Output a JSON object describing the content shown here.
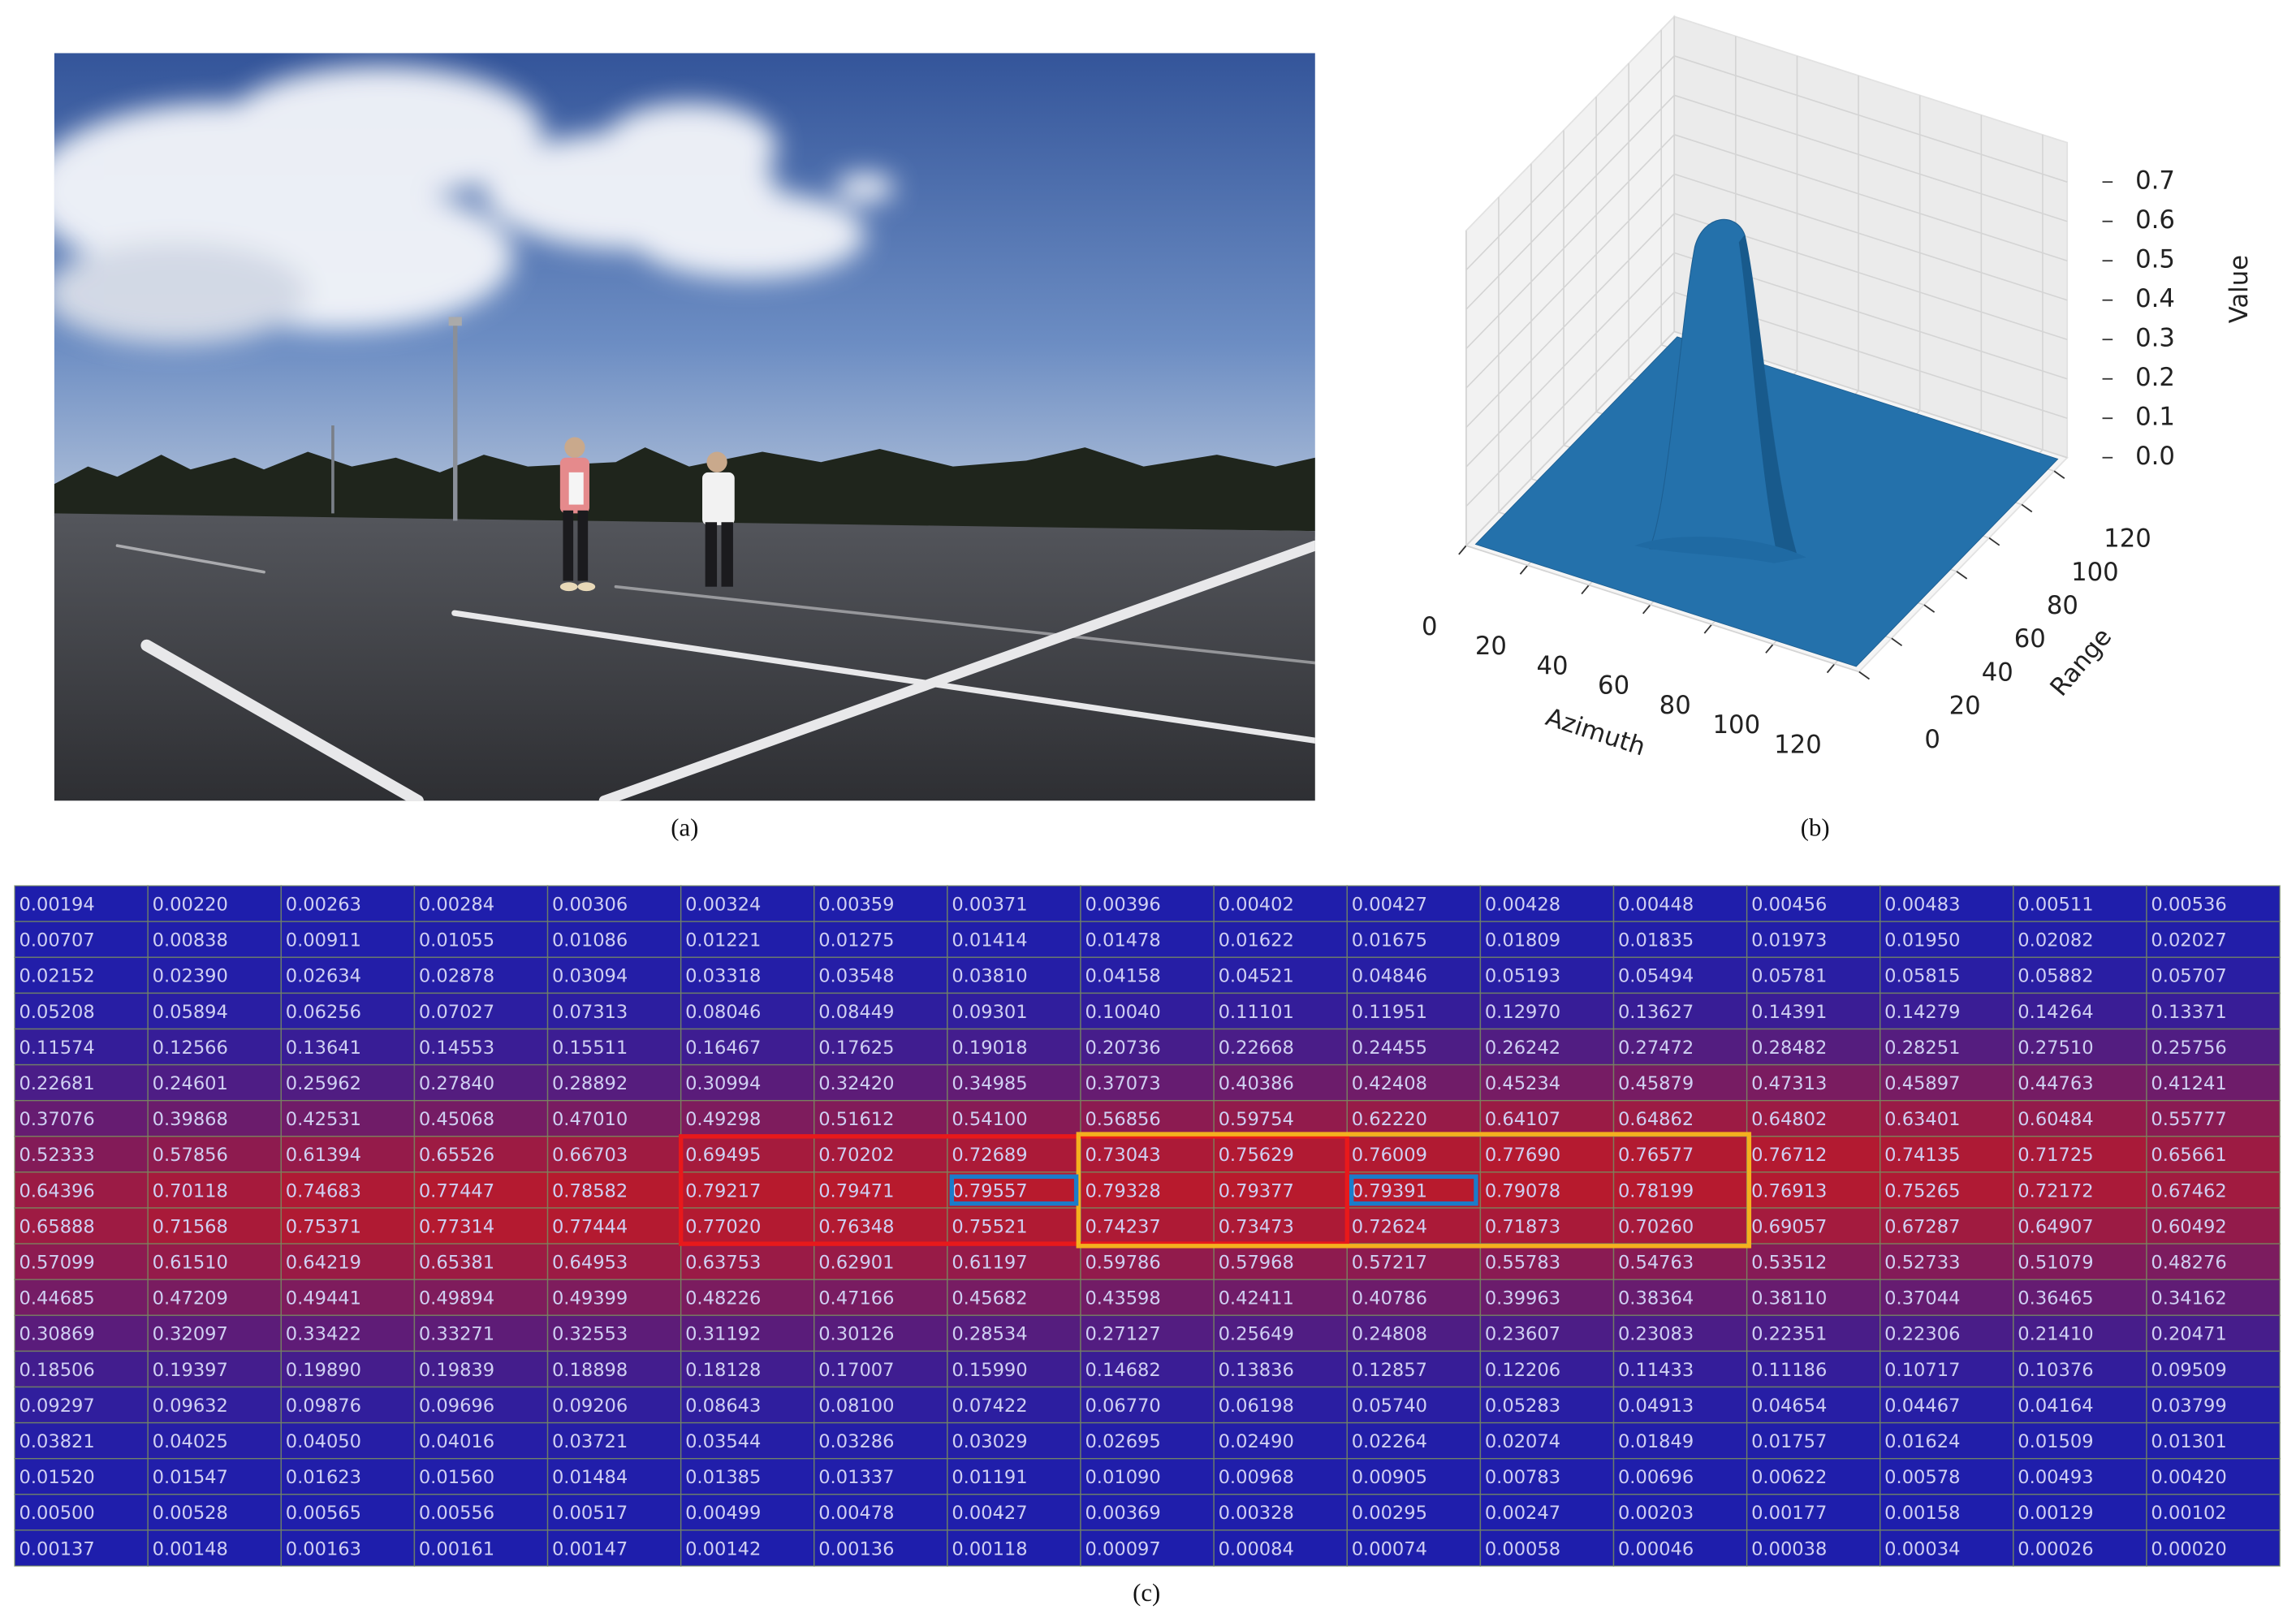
{
  "photo": {
    "caption": "(a)"
  },
  "chart_data": {
    "type": "surface3d",
    "caption": "(b)",
    "x_label": "Azimuth",
    "y_label": "Range",
    "z_label": "Value",
    "xlim": [
      0,
      128
    ],
    "ylim": [
      0,
      128
    ],
    "zlim": [
      0,
      0.8
    ],
    "xticks": [
      0,
      20,
      40,
      60,
      80,
      100,
      120
    ],
    "yticks": [
      0,
      20,
      40,
      60,
      80,
      100,
      120
    ],
    "zticks": [
      {
        "value": 0,
        "label": "0.0"
      },
      0.1,
      0.2,
      0.3,
      0.4,
      0.5,
      0.6,
      0.7
    ],
    "color": "#2471ab",
    "grid": true
  },
  "table": {
    "caption": "(c)",
    "rows": [
      [
        "0.00194",
        "0.00220",
        "0.00263",
        "0.00284",
        "0.00306",
        "0.00324",
        "0.00359",
        "0.00371",
        "0.00396",
        "0.00402",
        "0.00427",
        "0.00428",
        "0.00448",
        "0.00456",
        "0.00483",
        "0.00511",
        "0.00536"
      ],
      [
        "0.00707",
        "0.00838",
        "0.00911",
        "0.01055",
        "0.01086",
        "0.01221",
        "0.01275",
        "0.01414",
        "0.01478",
        "0.01622",
        "0.01675",
        "0.01809",
        "0.01835",
        "0.01973",
        "0.01950",
        "0.02082",
        "0.02027"
      ],
      [
        "0.02152",
        "0.02390",
        "0.02634",
        "0.02878",
        "0.03094",
        "0.03318",
        "0.03548",
        "0.03810",
        "0.04158",
        "0.04521",
        "0.04846",
        "0.05193",
        "0.05494",
        "0.05781",
        "0.05815",
        "0.05882",
        "0.05707"
      ],
      [
        "0.05208",
        "0.05894",
        "0.06256",
        "0.07027",
        "0.07313",
        "0.08046",
        "0.08449",
        "0.09301",
        "0.10040",
        "0.11101",
        "0.11951",
        "0.12970",
        "0.13627",
        "0.14391",
        "0.14279",
        "0.14264",
        "0.13371"
      ],
      [
        "0.11574",
        "0.12566",
        "0.13641",
        "0.14553",
        "0.15511",
        "0.16467",
        "0.17625",
        "0.19018",
        "0.20736",
        "0.22668",
        "0.24455",
        "0.26242",
        "0.27472",
        "0.28482",
        "0.28251",
        "0.27510",
        "0.25756"
      ],
      [
        "0.22681",
        "0.24601",
        "0.25962",
        "0.27840",
        "0.28892",
        "0.30994",
        "0.32420",
        "0.34985",
        "0.37073",
        "0.40386",
        "0.42408",
        "0.45234",
        "0.45879",
        "0.47313",
        "0.45897",
        "0.44763",
        "0.41241"
      ],
      [
        "0.37076",
        "0.39868",
        "0.42531",
        "0.45068",
        "0.47010",
        "0.49298",
        "0.51612",
        "0.54100",
        "0.56856",
        "0.59754",
        "0.62220",
        "0.64107",
        "0.64862",
        "0.64802",
        "0.63401",
        "0.60484",
        "0.55777"
      ],
      [
        "0.52333",
        "0.57856",
        "0.61394",
        "0.65526",
        "0.66703",
        "0.69495",
        "0.70202",
        "0.72689",
        "0.73043",
        "0.75629",
        "0.76009",
        "0.77690",
        "0.76577",
        "0.76712",
        "0.74135",
        "0.71725",
        "0.65661"
      ],
      [
        "0.64396",
        "0.70118",
        "0.74683",
        "0.77447",
        "0.78582",
        "0.79217",
        "0.79471",
        "0.79557",
        "0.79328",
        "0.79377",
        "0.79391",
        "0.79078",
        "0.78199",
        "0.76913",
        "0.75265",
        "0.72172",
        "0.67462"
      ],
      [
        "0.65888",
        "0.71568",
        "0.75371",
        "0.77314",
        "0.77444",
        "0.77020",
        "0.76348",
        "0.75521",
        "0.74237",
        "0.73473",
        "0.72624",
        "0.71873",
        "0.70260",
        "0.69057",
        "0.67287",
        "0.64907",
        "0.60492"
      ],
      [
        "0.57099",
        "0.61510",
        "0.64219",
        "0.65381",
        "0.64953",
        "0.63753",
        "0.62901",
        "0.61197",
        "0.59786",
        "0.57968",
        "0.57217",
        "0.55783",
        "0.54763",
        "0.53512",
        "0.52733",
        "0.51079",
        "0.48276"
      ],
      [
        "0.44685",
        "0.47209",
        "0.49441",
        "0.49894",
        "0.49399",
        "0.48226",
        "0.47166",
        "0.45682",
        "0.43598",
        "0.42411",
        "0.40786",
        "0.39963",
        "0.38364",
        "0.38110",
        "0.37044",
        "0.36465",
        "0.34162"
      ],
      [
        "0.30869",
        "0.32097",
        "0.33422",
        "0.33271",
        "0.32553",
        "0.31192",
        "0.30126",
        "0.28534",
        "0.27127",
        "0.25649",
        "0.24808",
        "0.23607",
        "0.23083",
        "0.22351",
        "0.22306",
        "0.21410",
        "0.20471"
      ],
      [
        "0.18506",
        "0.19397",
        "0.19890",
        "0.19839",
        "0.18898",
        "0.18128",
        "0.17007",
        "0.15990",
        "0.14682",
        "0.13836",
        "0.12857",
        "0.12206",
        "0.11433",
        "0.11186",
        "0.10717",
        "0.10376",
        "0.09509"
      ],
      [
        "0.09297",
        "0.09632",
        "0.09876",
        "0.09696",
        "0.09206",
        "0.08643",
        "0.08100",
        "0.07422",
        "0.06770",
        "0.06198",
        "0.05740",
        "0.05283",
        "0.04913",
        "0.04654",
        "0.04467",
        "0.04164",
        "0.03799"
      ],
      [
        "0.03821",
        "0.04025",
        "0.04050",
        "0.04016",
        "0.03721",
        "0.03544",
        "0.03286",
        "0.03029",
        "0.02695",
        "0.02490",
        "0.02264",
        "0.02074",
        "0.01849",
        "0.01757",
        "0.01624",
        "0.01509",
        "0.01301"
      ],
      [
        "0.01520",
        "0.01547",
        "0.01623",
        "0.01560",
        "0.01484",
        "0.01385",
        "0.01337",
        "0.01191",
        "0.01090",
        "0.00968",
        "0.00905",
        "0.00783",
        "0.00696",
        "0.00622",
        "0.00578",
        "0.00493",
        "0.00420"
      ],
      [
        "0.00500",
        "0.00528",
        "0.00565",
        "0.00556",
        "0.00517",
        "0.00499",
        "0.00478",
        "0.00427",
        "0.00369",
        "0.00328",
        "0.00295",
        "0.00247",
        "0.00203",
        "0.00177",
        "0.00158",
        "0.00129",
        "0.00102"
      ],
      [
        "0.00137",
        "0.00148",
        "0.00163",
        "0.00161",
        "0.00147",
        "0.00142",
        "0.00136",
        "0.00118",
        "0.00097",
        "0.00084",
        "0.00074",
        "0.00058",
        "0.00046",
        "0.00038",
        "0.00034",
        "0.00026",
        "0.00020"
      ]
    ]
  }
}
